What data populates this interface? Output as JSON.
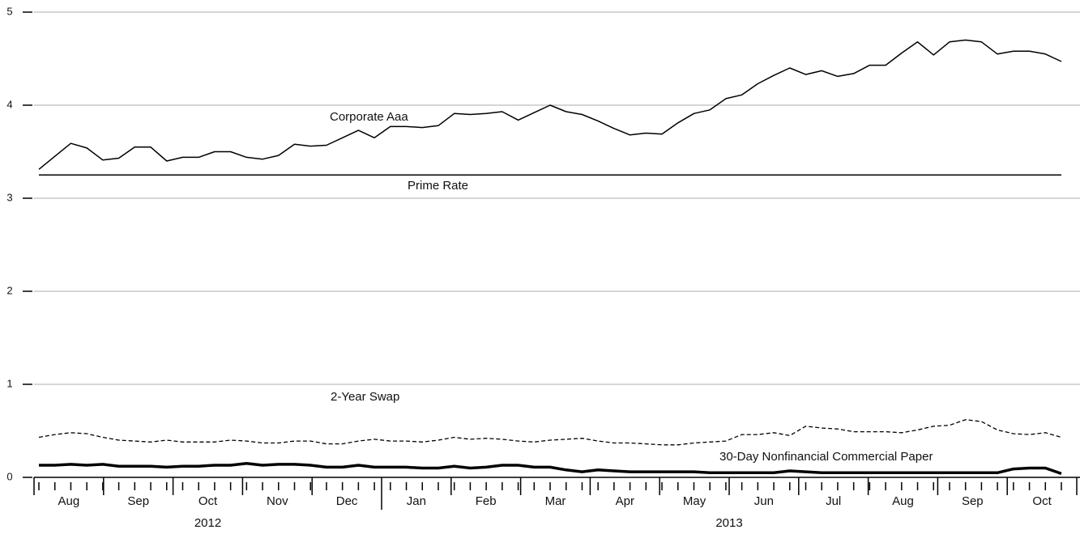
{
  "chart_data": {
    "type": "line",
    "ylim": [
      0,
      5
    ],
    "yticks": [
      0,
      1,
      2,
      3,
      4,
      5
    ],
    "grid": true,
    "months": [
      "Aug",
      "Sep",
      "Oct",
      "Nov",
      "Dec",
      "Jan",
      "Feb",
      "Mar",
      "Apr",
      "May",
      "Jun",
      "Jul",
      "Aug",
      "Sep",
      "Oct"
    ],
    "years": [
      "2012",
      "2013"
    ],
    "series": [
      {
        "name": "Corporate Aaa",
        "color": "#000000",
        "width": 1.5,
        "dash": false,
        "values": [
          3.31,
          3.45,
          3.59,
          3.54,
          3.41,
          3.43,
          3.55,
          3.55,
          3.4,
          3.44,
          3.44,
          3.5,
          3.5,
          3.44,
          3.42,
          3.46,
          3.58,
          3.56,
          3.57,
          3.65,
          3.73,
          3.65,
          3.77,
          3.77,
          3.76,
          3.78,
          3.91,
          3.9,
          3.91,
          3.93,
          3.84,
          3.92,
          4.0,
          3.93,
          3.9,
          3.83,
          3.75,
          3.68,
          3.7,
          3.69,
          3.81,
          3.91,
          3.95,
          4.07,
          4.11,
          4.23,
          4.32,
          4.4,
          4.33,
          4.37,
          4.31,
          4.34,
          4.43,
          4.43,
          4.56,
          4.68,
          4.54,
          4.68,
          4.7,
          4.68,
          4.55,
          4.58,
          4.58,
          4.55,
          4.47
        ]
      },
      {
        "name": "Prime Rate",
        "color": "#000000",
        "width": 1.5,
        "dash": false,
        "values": [
          3.25,
          3.25,
          3.25,
          3.25,
          3.25,
          3.25,
          3.25,
          3.25,
          3.25,
          3.25,
          3.25,
          3.25,
          3.25,
          3.25,
          3.25,
          3.25,
          3.25,
          3.25,
          3.25,
          3.25,
          3.25,
          3.25,
          3.25,
          3.25,
          3.25,
          3.25,
          3.25,
          3.25,
          3.25,
          3.25,
          3.25,
          3.25,
          3.25,
          3.25,
          3.25,
          3.25,
          3.25,
          3.25,
          3.25,
          3.25,
          3.25,
          3.25,
          3.25,
          3.25,
          3.25,
          3.25,
          3.25,
          3.25,
          3.25,
          3.25,
          3.25,
          3.25,
          3.25,
          3.25,
          3.25,
          3.25,
          3.25,
          3.25,
          3.25,
          3.25,
          3.25,
          3.25,
          3.25,
          3.25,
          3.25
        ]
      },
      {
        "name": "2-Year Swap",
        "color": "#000000",
        "width": 1.3,
        "dash": true,
        "values": [
          0.43,
          0.46,
          0.48,
          0.47,
          0.43,
          0.4,
          0.39,
          0.38,
          0.4,
          0.38,
          0.38,
          0.38,
          0.4,
          0.39,
          0.37,
          0.37,
          0.39,
          0.39,
          0.36,
          0.36,
          0.39,
          0.41,
          0.39,
          0.39,
          0.38,
          0.4,
          0.43,
          0.41,
          0.42,
          0.41,
          0.39,
          0.38,
          0.4,
          0.41,
          0.42,
          0.39,
          0.37,
          0.37,
          0.36,
          0.35,
          0.35,
          0.37,
          0.38,
          0.39,
          0.46,
          0.46,
          0.48,
          0.45,
          0.55,
          0.53,
          0.52,
          0.49,
          0.49,
          0.49,
          0.48,
          0.51,
          0.55,
          0.56,
          0.62,
          0.6,
          0.51,
          0.47,
          0.46,
          0.48,
          0.43
        ]
      },
      {
        "name": "30-Day Nonfinancial Commercial Paper",
        "color": "#000000",
        "width": 3.5,
        "dash": false,
        "values": [
          0.13,
          0.13,
          0.14,
          0.13,
          0.14,
          0.12,
          0.12,
          0.12,
          0.11,
          0.12,
          0.12,
          0.13,
          0.13,
          0.15,
          0.13,
          0.14,
          0.14,
          0.13,
          0.11,
          0.11,
          0.13,
          0.11,
          0.11,
          0.11,
          0.1,
          0.1,
          0.12,
          0.1,
          0.11,
          0.13,
          0.13,
          0.11,
          0.11,
          0.08,
          0.06,
          0.08,
          0.07,
          0.06,
          0.06,
          0.06,
          0.06,
          0.06,
          0.05,
          0.05,
          0.05,
          0.05,
          0.05,
          0.07,
          0.06,
          0.05,
          0.05,
          0.05,
          0.05,
          0.05,
          0.05,
          0.05,
          0.05,
          0.05,
          0.05,
          0.05,
          0.05,
          0.09,
          0.1,
          0.1,
          0.04
        ]
      }
    ]
  }
}
